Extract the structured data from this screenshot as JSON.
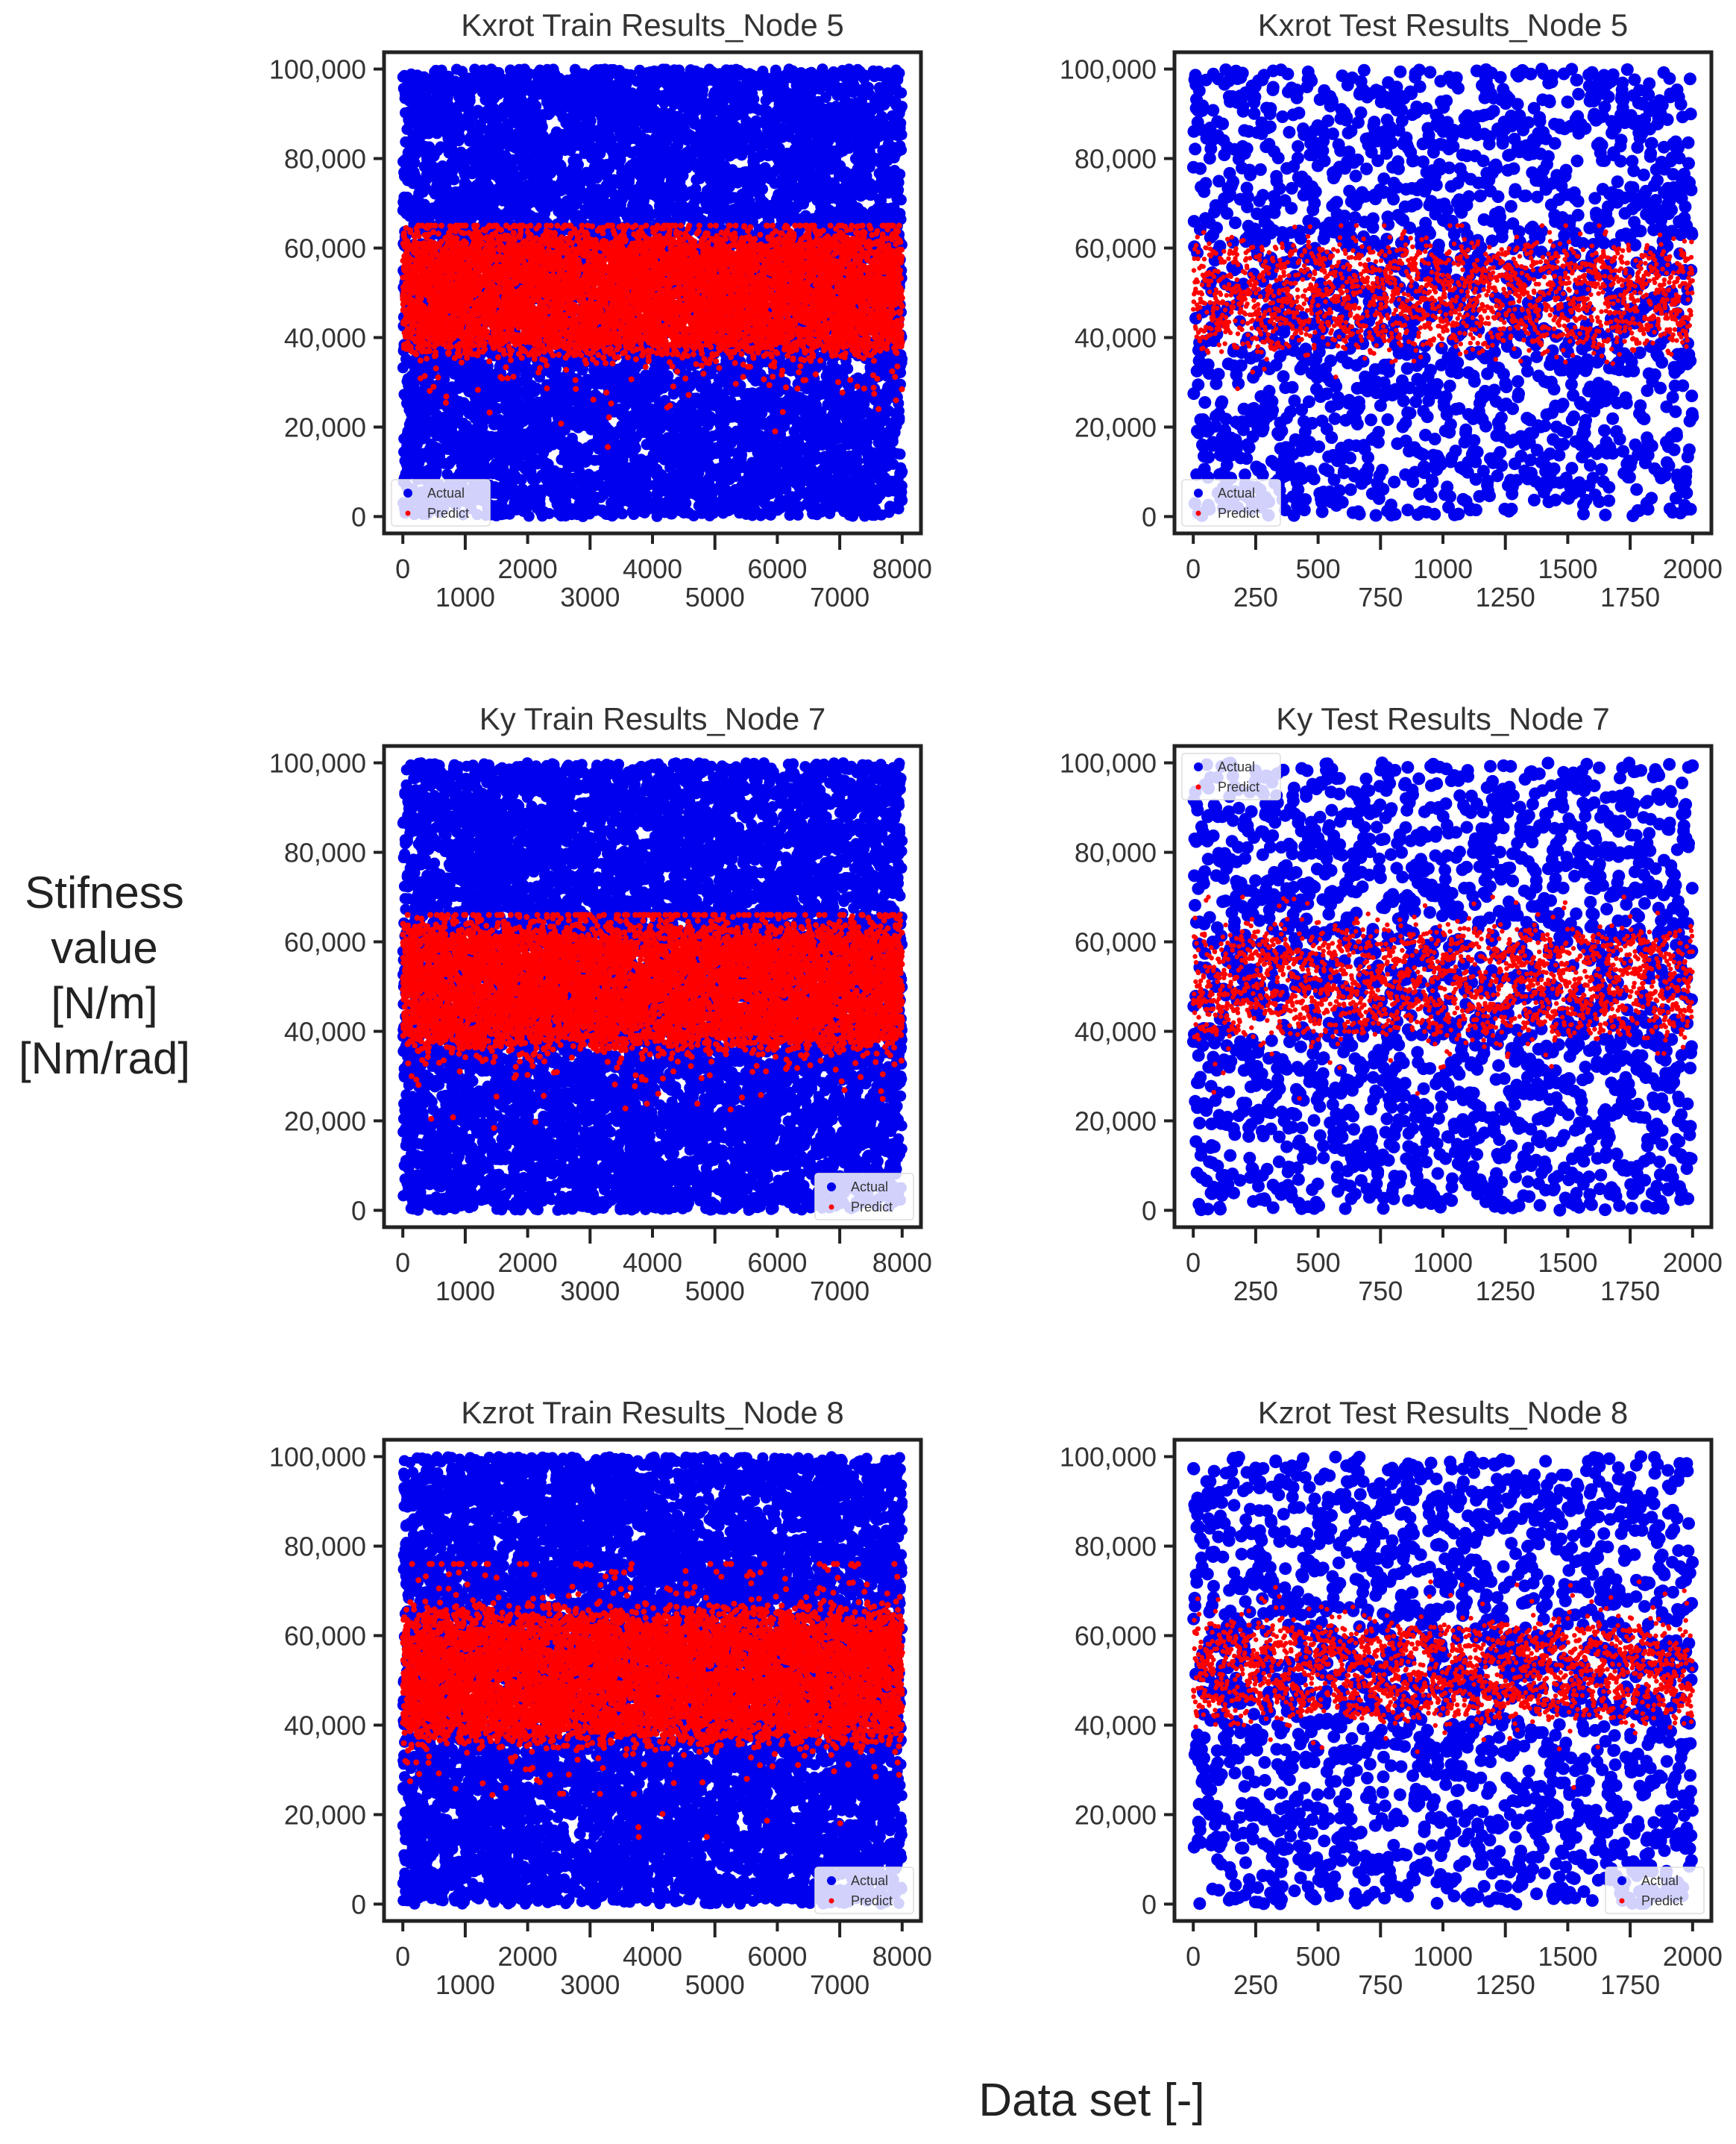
{
  "figure": {
    "ylabel_lines": [
      "Stifness",
      "value",
      "[N/m]",
      "[Nm/rad]"
    ],
    "xlabel": "Data set [-]"
  },
  "legend_labels": {
    "actual": "Actual",
    "predict": "Predict"
  },
  "colors": {
    "actual": "#0000ee",
    "predict": "#ff0000",
    "axis": "#222222",
    "text": "#333333"
  },
  "chart_data": [
    {
      "type": "scatter",
      "title": "Kxrot Train Results_Node 5",
      "xlim": [
        0,
        8000
      ],
      "ylim": [
        0,
        100000
      ],
      "xticks": [
        0,
        1000,
        2000,
        3000,
        4000,
        5000,
        6000,
        7000,
        8000
      ],
      "xtick_labels": [
        "0",
        "1000",
        "2000",
        "3000",
        "4000",
        "5000",
        "6000",
        "7000",
        "8000"
      ],
      "yticks": [
        0,
        20000,
        40000,
        60000,
        80000,
        100000
      ],
      "ytick_labels": [
        "0",
        "20,000",
        "40,000",
        "60,000",
        "80,000",
        "100,000"
      ],
      "legend_position": "bottom-left",
      "series": [
        {
          "name": "Actual",
          "distribution": "uniform",
          "range": [
            0,
            100000
          ],
          "n_points": 8000
        },
        {
          "name": "Predict",
          "distribution": "band",
          "center": 50000,
          "band": [
            38000,
            62000
          ],
          "tails": [
            0,
            65000
          ],
          "n_points": 8000
        }
      ]
    },
    {
      "type": "scatter",
      "title": "Kxrot Test Results_Node 5",
      "xlim": [
        0,
        2000
      ],
      "ylim": [
        0,
        100000
      ],
      "xticks": [
        0,
        250,
        500,
        750,
        1000,
        1250,
        1500,
        1750,
        2000
      ],
      "xtick_labels": [
        "0",
        "250",
        "500",
        "750",
        "1000",
        "1250",
        "1500",
        "1750",
        "2000"
      ],
      "yticks": [
        0,
        20000,
        40000,
        60000,
        80000,
        100000
      ],
      "ytick_labels": [
        "0",
        "20,000",
        "40,000",
        "60,000",
        "80,000",
        "100,000"
      ],
      "legend_position": "bottom-left",
      "series": [
        {
          "name": "Actual",
          "distribution": "uniform",
          "range": [
            0,
            100000
          ],
          "n_points": 2000
        },
        {
          "name": "Predict",
          "distribution": "band",
          "center": 50000,
          "band": [
            38000,
            60000
          ],
          "tails": [
            20000,
            65000
          ],
          "n_points": 2000
        }
      ]
    },
    {
      "type": "scatter",
      "title": "Ky Train Results_Node 7",
      "xlim": [
        0,
        8000
      ],
      "ylim": [
        0,
        100000
      ],
      "xticks": [
        0,
        1000,
        2000,
        3000,
        4000,
        5000,
        6000,
        7000,
        8000
      ],
      "xtick_labels": [
        "0",
        "1000",
        "2000",
        "3000",
        "4000",
        "5000",
        "6000",
        "7000",
        "8000"
      ],
      "yticks": [
        0,
        20000,
        40000,
        60000,
        80000,
        100000
      ],
      "ytick_labels": [
        "0",
        "20,000",
        "40,000",
        "60,000",
        "80,000",
        "100,000"
      ],
      "legend_position": "bottom-right",
      "series": [
        {
          "name": "Actual",
          "distribution": "uniform",
          "range": [
            0,
            100000
          ],
          "n_points": 8000
        },
        {
          "name": "Predict",
          "distribution": "band",
          "center": 50000,
          "band": [
            38000,
            62000
          ],
          "tails": [
            5000,
            66000
          ],
          "n_points": 8000
        }
      ]
    },
    {
      "type": "scatter",
      "title": "Ky Test Results_Node 7",
      "xlim": [
        0,
        2000
      ],
      "ylim": [
        0,
        100000
      ],
      "xticks": [
        0,
        250,
        500,
        750,
        1000,
        1250,
        1500,
        1750,
        2000
      ],
      "xtick_labels": [
        "0",
        "250",
        "500",
        "750",
        "1000",
        "1250",
        "1500",
        "1750",
        "2000"
      ],
      "yticks": [
        0,
        20000,
        40000,
        60000,
        80000,
        100000
      ],
      "ytick_labels": [
        "0",
        "20,000",
        "40,000",
        "60,000",
        "80,000",
        "100,000"
      ],
      "legend_position": "top-left",
      "series": [
        {
          "name": "Actual",
          "distribution": "uniform",
          "range": [
            0,
            100000
          ],
          "n_points": 2000
        },
        {
          "name": "Predict",
          "distribution": "band",
          "center": 52000,
          "band": [
            40000,
            62000
          ],
          "tails": [
            25000,
            70000
          ],
          "n_points": 2000
        }
      ]
    },
    {
      "type": "scatter",
      "title": "Kzrot Train Results_Node 8",
      "xlim": [
        0,
        8000
      ],
      "ylim": [
        0,
        100000
      ],
      "xticks": [
        0,
        1000,
        2000,
        3000,
        4000,
        5000,
        6000,
        7000,
        8000
      ],
      "xtick_labels": [
        "0",
        "1000",
        "2000",
        "3000",
        "4000",
        "5000",
        "6000",
        "7000",
        "8000"
      ],
      "yticks": [
        0,
        20000,
        40000,
        60000,
        80000,
        100000
      ],
      "ytick_labels": [
        "0",
        "20,000",
        "40,000",
        "60,000",
        "80,000",
        "100,000"
      ],
      "legend_position": "bottom-right",
      "series": [
        {
          "name": "Actual",
          "distribution": "uniform",
          "range": [
            0,
            100000
          ],
          "n_points": 8000
        },
        {
          "name": "Predict",
          "distribution": "band",
          "center": 52000,
          "band": [
            38000,
            64000
          ],
          "tails": [
            15000,
            76000
          ],
          "n_points": 8000
        }
      ]
    },
    {
      "type": "scatter",
      "title": "Kzrot Test Results_Node 8",
      "xlim": [
        0,
        2000
      ],
      "ylim": [
        0,
        100000
      ],
      "xticks": [
        0,
        250,
        500,
        750,
        1000,
        1250,
        1500,
        1750,
        2000
      ],
      "xtick_labels": [
        "0",
        "250",
        "500",
        "750",
        "1000",
        "1250",
        "1500",
        "1750",
        "2000"
      ],
      "yticks": [
        0,
        20000,
        40000,
        60000,
        80000,
        100000
      ],
      "ytick_labels": [
        "0",
        "20,000",
        "40,000",
        "60,000",
        "80,000",
        "100,000"
      ],
      "legend_position": "bottom-right",
      "series": [
        {
          "name": "Actual",
          "distribution": "uniform",
          "range": [
            0,
            100000
          ],
          "n_points": 2000
        },
        {
          "name": "Predict",
          "distribution": "band",
          "center": 53000,
          "band": [
            42000,
            62000
          ],
          "tails": [
            25000,
            72000
          ],
          "n_points": 2000
        }
      ]
    }
  ]
}
